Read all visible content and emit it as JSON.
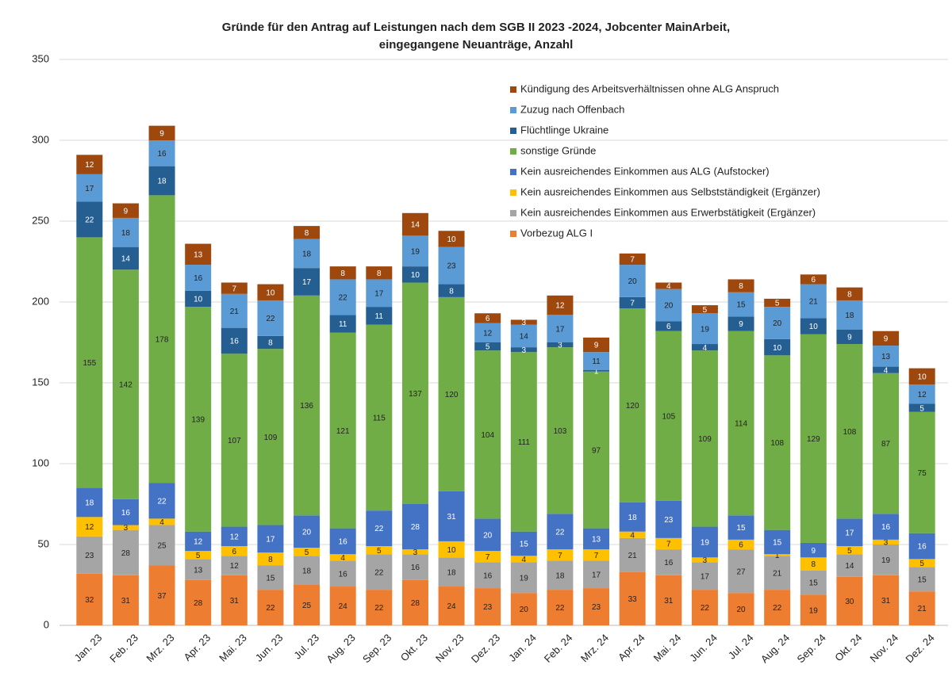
{
  "chart_data": {
    "type": "stacked_bar",
    "title": [
      "Gründe für den Antrag auf Leistungen nach dem SGB II 2023 -2024, Jobcenter MainArbeit,",
      "eingegangene Neuanträge, Anzahl"
    ],
    "categories": [
      "Jan. 23",
      "Feb. 23",
      "Mrz. 23",
      "Apr. 23",
      "Mai. 23",
      "Jun. 23",
      "Jul. 23",
      "Aug. 23",
      "Sep. 23",
      "Okt. 23",
      "Nov. 23",
      "Dez. 23",
      "Jan. 24",
      "Feb. 24",
      "Mrz. 24",
      "Apr. 24",
      "Mai. 24",
      "Jun. 24",
      "Jul. 24",
      "Aug. 24",
      "Sep. 24",
      "Okt. 24",
      "Nov. 24",
      "Dez. 24"
    ],
    "series": [
      {
        "name": "Vorbezug ALG I",
        "color": "#ed7d31",
        "values": [
          32,
          31,
          37,
          28,
          31,
          22,
          25,
          24,
          22,
          28,
          24,
          23,
          20,
          22,
          23,
          33,
          31,
          22,
          20,
          22,
          19,
          30,
          31,
          21
        ]
      },
      {
        "name": "Kein ausreichendes Einkommen aus Erwerbstätigkeit (Ergänzer)",
        "color": "#a5a5a5",
        "values": [
          23,
          28,
          25,
          13,
          12,
          15,
          18,
          16,
          22,
          16,
          18,
          16,
          19,
          18,
          17,
          21,
          16,
          17,
          27,
          21,
          15,
          14,
          19,
          15
        ]
      },
      {
        "name": "Kein ausreichendes Einkommen aus Selbstständigkeit (Ergänzer)",
        "color": "#ffc000",
        "values": [
          12,
          3,
          4,
          5,
          6,
          8,
          5,
          4,
          5,
          3,
          10,
          7,
          4,
          7,
          7,
          4,
          7,
          3,
          6,
          1,
          8,
          5,
          3,
          5
        ]
      },
      {
        "name": "Kein ausreichendes Einkommen aus ALG (Aufstocker)",
        "color": "#4472c4",
        "values": [
          18,
          16,
          22,
          12,
          12,
          17,
          20,
          16,
          22,
          28,
          31,
          20,
          15,
          22,
          13,
          18,
          23,
          19,
          15,
          15,
          9,
          17,
          16,
          16
        ]
      },
      {
        "name": "sonstige Gründe",
        "color": "#70ad47",
        "values": [
          155,
          142,
          178,
          139,
          107,
          109,
          136,
          121,
          115,
          137,
          120,
          104,
          111,
          103,
          97,
          120,
          105,
          109,
          114,
          108,
          129,
          108,
          87,
          75
        ]
      },
      {
        "name": "Flüchtlinge Ukraine",
        "color": "#255e91",
        "values": [
          22,
          14,
          18,
          10,
          16,
          8,
          17,
          11,
          11,
          10,
          8,
          5,
          3,
          3,
          1,
          7,
          6,
          4,
          9,
          10,
          10,
          9,
          4,
          5
        ]
      },
      {
        "name": "Zuzug nach Offenbach",
        "color": "#5b9bd5",
        "values": [
          17,
          18,
          16,
          16,
          21,
          22,
          18,
          22,
          17,
          19,
          23,
          12,
          14,
          17,
          11,
          20,
          20,
          19,
          15,
          20,
          21,
          18,
          13,
          12
        ]
      },
      {
        "name": "Kündigung des Arbeitsverhältnissen ohne ALG Anspruch",
        "color": "#9e480e",
        "values": [
          12,
          9,
          9,
          13,
          7,
          10,
          8,
          8,
          8,
          14,
          10,
          6,
          3,
          12,
          9,
          7,
          4,
          5,
          8,
          5,
          6,
          8,
          9,
          10
        ]
      }
    ],
    "ylim": [
      0,
      350
    ],
    "yticks": [
      0,
      50,
      100,
      150,
      200,
      250,
      300,
      350
    ],
    "grid": true
  }
}
